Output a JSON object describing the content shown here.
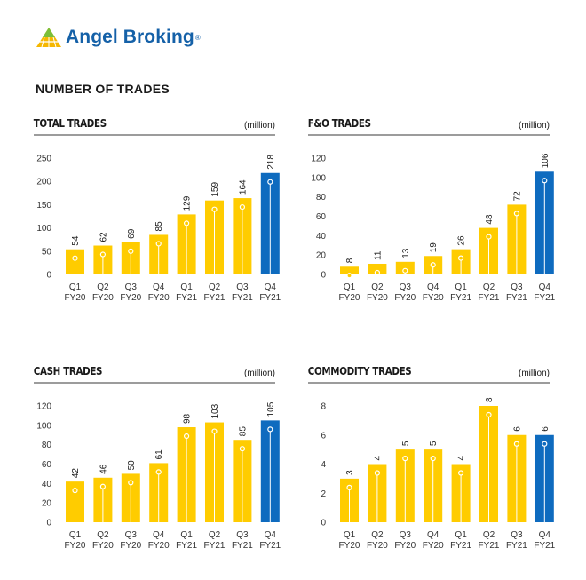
{
  "brand": {
    "name": "Angel Broking",
    "registered": "®"
  },
  "page": {
    "heading": "NUMBER OF TRADES"
  },
  "colors": {
    "yellow": "#FFCC00",
    "blue": "#0E6BBF",
    "brand_blue": "#1561A8",
    "brand_gold": "#F5B700",
    "brand_green": "#7BBF3A"
  },
  "chart_data": [
    {
      "type": "bar",
      "title": "TOTAL TRADES",
      "unit": "(million)",
      "categories": [
        [
          "Q1",
          "FY20"
        ],
        [
          "Q2",
          "FY20"
        ],
        [
          "Q3",
          "FY20"
        ],
        [
          "Q4",
          "FY20"
        ],
        [
          "Q1",
          "FY21"
        ],
        [
          "Q2",
          "FY21"
        ],
        [
          "Q3",
          "FY21"
        ],
        [
          "Q4",
          "FY21"
        ]
      ],
      "values": [
        54,
        62,
        69,
        85,
        129,
        159,
        164,
        218
      ],
      "labels": [
        "54",
        "62",
        "69",
        "85",
        "129",
        "159",
        "164",
        "218"
      ],
      "yticks": [
        0,
        50,
        100,
        150,
        200,
        250
      ],
      "ylim": [
        0,
        250
      ],
      "highlight_index": 7
    },
    {
      "type": "bar",
      "title": "F&O TRADES",
      "unit": "(million)",
      "categories": [
        [
          "Q1",
          "FY20"
        ],
        [
          "Q2",
          "FY20"
        ],
        [
          "Q3",
          "FY20"
        ],
        [
          "Q4",
          "FY20"
        ],
        [
          "Q1",
          "FY21"
        ],
        [
          "Q2",
          "FY21"
        ],
        [
          "Q3",
          "FY21"
        ],
        [
          "Q4",
          "FY21"
        ]
      ],
      "values": [
        8,
        11,
        13,
        19,
        26,
        48,
        72,
        106
      ],
      "labels": [
        "8",
        "11",
        "13",
        "19",
        "26",
        "48",
        "72",
        "106"
      ],
      "yticks": [
        0,
        20,
        40,
        60,
        80,
        100,
        120
      ],
      "ylim": [
        0,
        120
      ],
      "highlight_index": 7
    },
    {
      "type": "bar",
      "title": "CASH TRADES",
      "unit": "(million)",
      "categories": [
        [
          "Q1",
          "FY20"
        ],
        [
          "Q2",
          "FY20"
        ],
        [
          "Q3",
          "FY20"
        ],
        [
          "Q4",
          "FY20"
        ],
        [
          "Q1",
          "FY21"
        ],
        [
          "Q2",
          "FY21"
        ],
        [
          "Q3",
          "FY21"
        ],
        [
          "Q4",
          "FY21"
        ]
      ],
      "values": [
        42,
        46,
        50,
        61,
        98,
        103,
        85,
        105
      ],
      "labels": [
        "42",
        "46",
        "50",
        "61",
        "98",
        "103",
        "85",
        "105"
      ],
      "yticks": [
        0,
        20,
        40,
        60,
        80,
        100,
        120
      ],
      "ylim": [
        0,
        120
      ],
      "highlight_index": 7
    },
    {
      "type": "bar",
      "title": "COMMODITY TRADES",
      "unit": "(million)",
      "categories": [
        [
          "Q1",
          "FY20"
        ],
        [
          "Q2",
          "FY20"
        ],
        [
          "Q3",
          "FY20"
        ],
        [
          "Q4",
          "FY20"
        ],
        [
          "Q1",
          "FY21"
        ],
        [
          "Q2",
          "FY21"
        ],
        [
          "Q3",
          "FY21"
        ],
        [
          "Q4",
          "FY21"
        ]
      ],
      "values": [
        3,
        4,
        5,
        5,
        4,
        8,
        6,
        6
      ],
      "labels": [
        "3",
        "4",
        "5",
        "5",
        "4",
        "8",
        "6",
        "6"
      ],
      "yticks": [
        0,
        2,
        4,
        6,
        8
      ],
      "ylim": [
        0,
        8
      ],
      "highlight_index": 7
    }
  ]
}
